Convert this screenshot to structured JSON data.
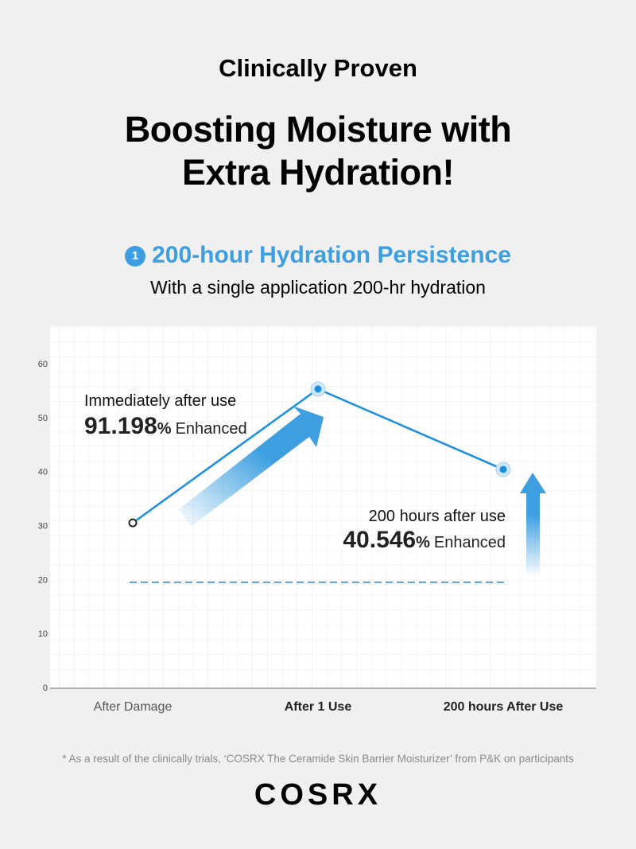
{
  "header": {
    "eyebrow": "Clinically Proven",
    "headline_line1": "Boosting Moisture with",
    "headline_line2": "Extra Hydration!"
  },
  "section": {
    "number": "1",
    "title": "200-hour Hydration Persistence",
    "subtitle": "With a single application 200-hr hydration"
  },
  "chart_data": {
    "type": "line",
    "categories": [
      "After Damage",
      "After 1 Use",
      "200 hours After Use"
    ],
    "values": [
      30.5,
      55.3,
      40.4
    ],
    "baseline": 19.5,
    "ylim": [
      0,
      60
    ],
    "yticks": [
      0,
      10,
      20,
      30,
      40,
      50,
      60
    ],
    "grid": true,
    "colors": {
      "line": "#1a8fe0",
      "arrow": "#3d9fe0",
      "baseline": "#1a8fe0"
    },
    "annotations": [
      {
        "label": "Immediately after use",
        "value": "91.198",
        "unit": "%",
        "suffix": "Enhanced"
      },
      {
        "label": "200 hours after use",
        "value": "40.546",
        "unit": "%",
        "suffix": "Enhanced"
      }
    ]
  },
  "footnote": "* As a result of the clinically trials, ‘COSRX The Ceramide Skin Barrier Moisturizer’ from P&K on participants",
  "brand": "COSRX"
}
